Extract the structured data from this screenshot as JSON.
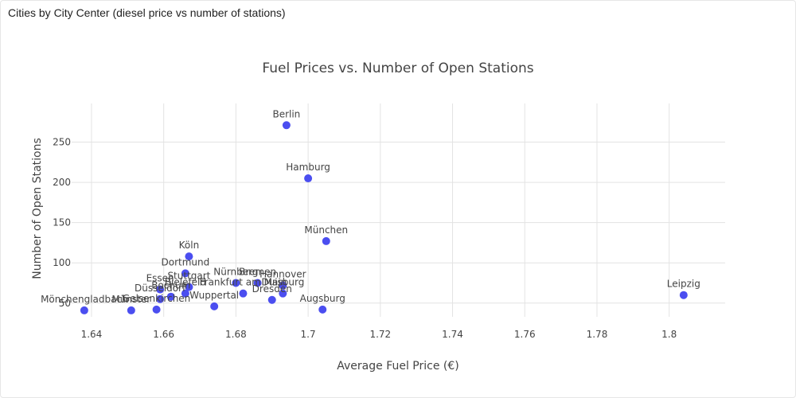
{
  "panel": {
    "title": "Cities by City Center (diesel price vs number of stations)"
  },
  "chart_data": {
    "type": "scatter",
    "title": "Fuel Prices vs. Number of Open Stations",
    "xlabel": "Average Fuel Price (€)",
    "ylabel": "Number of Open Stations",
    "xlim": [
      1.6345,
      1.8155
    ],
    "ylim": [
      33,
      298
    ],
    "xticks": [
      1.64,
      1.66,
      1.68,
      1.7,
      1.72,
      1.74,
      1.76,
      1.78,
      1.8
    ],
    "xtick_labels": [
      "1.64",
      "1.66",
      "1.68",
      "1.7",
      "1.72",
      "1.74",
      "1.76",
      "1.78",
      "1.8"
    ],
    "yticks": [
      50,
      100,
      150,
      200,
      250
    ],
    "ytick_labels": [
      "50",
      "100",
      "150",
      "200",
      "250"
    ],
    "grid": true,
    "marker_color": "#4b4ef0",
    "points": [
      {
        "label": "Berlin",
        "x": 1.694,
        "y": 271
      },
      {
        "label": "Hamburg",
        "x": 1.7,
        "y": 205
      },
      {
        "label": "München",
        "x": 1.705,
        "y": 127
      },
      {
        "label": "Köln",
        "x": 1.667,
        "y": 108
      },
      {
        "label": "Dortmund",
        "x": 1.666,
        "y": 87
      },
      {
        "label": "Leipzig",
        "x": 1.804,
        "y": 60
      },
      {
        "label": "Augsburg",
        "x": 1.704,
        "y": 42
      },
      {
        "label": "Wuppertal",
        "x": 1.674,
        "y": 46
      },
      {
        "label": "Nürnberg",
        "x": 1.68,
        "y": 75
      },
      {
        "label": "Bremen",
        "x": 1.686,
        "y": 75
      },
      {
        "label": "Hannover",
        "x": 1.693,
        "y": 72
      },
      {
        "label": "Duisburg",
        "x": 1.693,
        "y": 62
      },
      {
        "label": "Dresden",
        "x": 1.69,
        "y": 54
      },
      {
        "label": "Frankfurt am Main",
        "x": 1.682,
        "y": 62
      },
      {
        "label": "Stuttgart",
        "x": 1.667,
        "y": 70
      },
      {
        "label": "Essen",
        "x": 1.659,
        "y": 67
      },
      {
        "label": "Bielefeld",
        "x": 1.666,
        "y": 62
      },
      {
        "label": "Bochum",
        "x": 1.662,
        "y": 58
      },
      {
        "label": "Düsseldorf",
        "x": 1.659,
        "y": 55
      },
      {
        "label": "Gelsenkirchen",
        "x": 1.658,
        "y": 42
      },
      {
        "label": "Münster",
        "x": 1.651,
        "y": 41
      },
      {
        "label": "Mönchengladbach",
        "x": 1.638,
        "y": 41
      }
    ]
  }
}
